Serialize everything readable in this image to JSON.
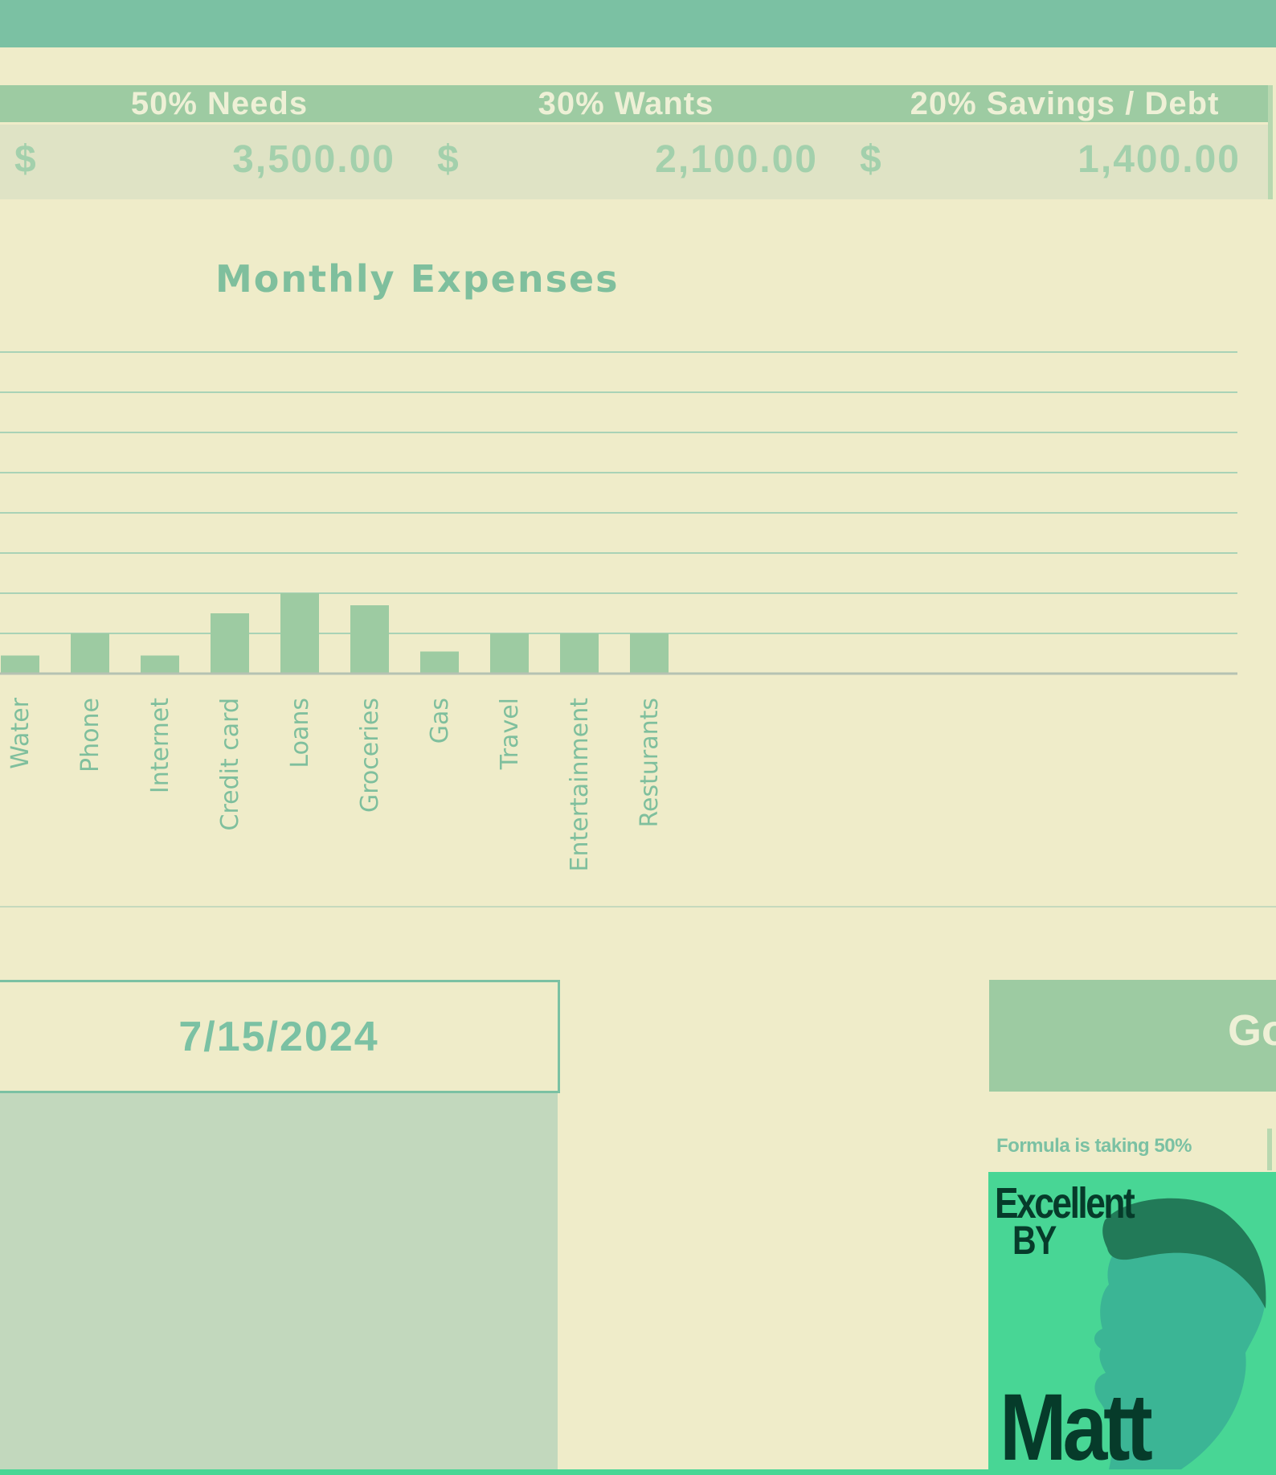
{
  "budget": {
    "headers": [
      "50% Needs",
      "30% Wants",
      "20% Savings / Debt"
    ],
    "currency_symbol": "$",
    "values": [
      "3,500.00",
      "2,100.00",
      "1,400.00"
    ]
  },
  "chart_data": {
    "type": "bar",
    "title": "Monthly Expenses",
    "categories": [
      "Water",
      "Phone",
      "Internet",
      "Credit card",
      "Loans",
      "Groceries",
      "Gas",
      "Travel",
      "Entertainment",
      "Resturants"
    ],
    "values": [
      45,
      100,
      45,
      150,
      200,
      170,
      55,
      100,
      100,
      100
    ],
    "ylim": [
      0,
      800
    ],
    "grid": true,
    "xlabel": "",
    "ylabel": "",
    "bar_color": "#9dcba2"
  },
  "date_box": {
    "date": "7/15/2024"
  },
  "goal_box": {
    "label": "Go"
  },
  "formula_note": "Formula is taking 50%",
  "logo": {
    "line1": "Excellent",
    "line2": "BY",
    "line3": "Matt"
  },
  "colors": {
    "background": "#efecc9",
    "accent": "#7bc1a3",
    "header_fill": "#9dcba2",
    "logo_green": "#48d695",
    "logo_dark": "#063b2a"
  }
}
